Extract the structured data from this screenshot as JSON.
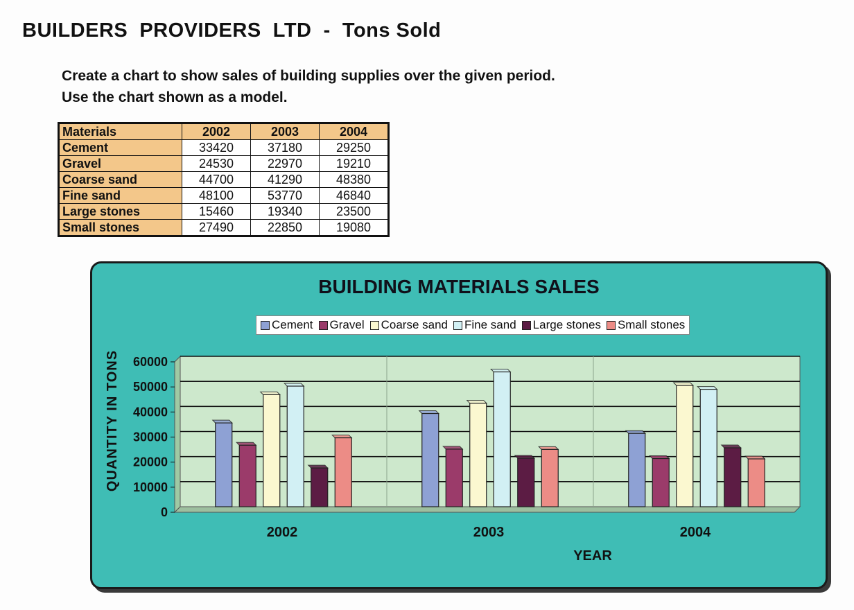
{
  "page": {
    "title": "BUILDERS  PROVIDERS  LTD  -  Tons Sold",
    "instruction_line1": "Create a chart to show sales of building supplies over the given period.",
    "instruction_line2": "Use the chart shown as a model."
  },
  "table": {
    "headers": [
      "Materials",
      "2002",
      "2003",
      "2004"
    ],
    "rows": [
      [
        "Cement",
        "33420",
        "37180",
        "29250"
      ],
      [
        "Gravel",
        "24530",
        "22970",
        "19210"
      ],
      [
        "Coarse sand",
        "44700",
        "41290",
        "48380"
      ],
      [
        "Fine sand",
        "48100",
        "53770",
        "46840"
      ],
      [
        "Large stones",
        "15460",
        "19340",
        "23500"
      ],
      [
        "Small stones",
        "27490",
        "22850",
        "19080"
      ]
    ]
  },
  "colors": {
    "panel": "#3fbdb5",
    "plot_area": "#cde8cc",
    "table_header": "#f3c78a"
  },
  "chart_data": {
    "type": "bar",
    "title": "BUILDING MATERIALS SALES",
    "xlabel": "YEAR",
    "ylabel": "QUANTITY IN TONS",
    "categories": [
      "2002",
      "2003",
      "2004"
    ],
    "ylim": [
      0,
      60000
    ],
    "yticks": [
      0,
      10000,
      20000,
      30000,
      40000,
      50000,
      60000
    ],
    "grid": true,
    "legend_position": "top",
    "series": [
      {
        "name": "Cement",
        "color": "#8ea1d4",
        "values": [
          33420,
          37180,
          29250
        ]
      },
      {
        "name": "Gravel",
        "color": "#9b3b6a",
        "values": [
          24530,
          22970,
          19210
        ]
      },
      {
        "name": "Coarse sand",
        "color": "#fbf8d0",
        "values": [
          44700,
          41290,
          48380
        ]
      },
      {
        "name": "Fine sand",
        "color": "#d2f0f4",
        "values": [
          48100,
          53770,
          46840
        ]
      },
      {
        "name": "Large stones",
        "color": "#5c1c44",
        "values": [
          15460,
          19340,
          23500
        ]
      },
      {
        "name": "Small stones",
        "color": "#ec8c86",
        "values": [
          27490,
          22850,
          19080
        ]
      }
    ]
  }
}
